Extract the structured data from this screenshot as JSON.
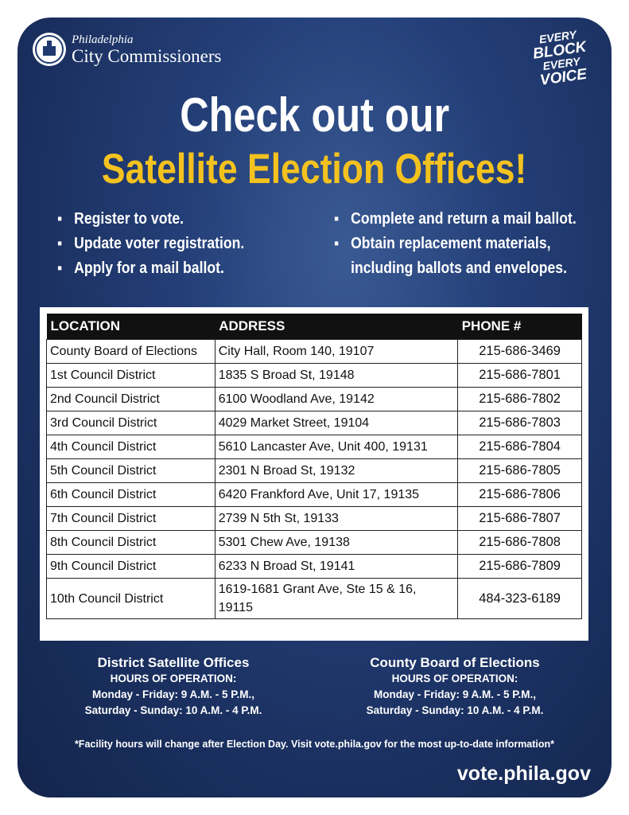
{
  "header": {
    "org_top": "Philadelphia",
    "org_name": "City Commissioners",
    "badge": [
      "EVERY",
      "BLOCK",
      "EVERY",
      "VOICE"
    ]
  },
  "headline": {
    "line1": "Check out our",
    "line2": "Satellite Election Offices!"
  },
  "services": {
    "left": [
      "Register to vote.",
      "Update voter registration.",
      "Apply for a mail ballot."
    ],
    "right": [
      "Complete and return a mail ballot.",
      "Obtain replacement materials, including ballots and envelopes."
    ]
  },
  "table": {
    "columns": [
      "LOCATION",
      "ADDRESS",
      "PHONE #"
    ],
    "rows": [
      [
        "County Board of Elections",
        "City Hall, Room 140, 19107",
        "215-686-3469"
      ],
      [
        "1st Council District",
        "1835 S Broad St, 19148",
        "215-686-7801"
      ],
      [
        "2nd Council District",
        "6100 Woodland Ave, 19142",
        "215-686-7802"
      ],
      [
        "3rd Council District",
        "4029 Market Street, 19104",
        "215-686-7803"
      ],
      [
        "4th Council District",
        "5610 Lancaster Ave, Unit 400, 19131",
        "215-686-7804"
      ],
      [
        "5th Council District",
        "2301 N Broad St, 19132",
        "215-686-7805"
      ],
      [
        "6th Council District",
        "6420 Frankford Ave, Unit 17, 19135",
        "215-686-7806"
      ],
      [
        "7th Council District",
        "2739 N 5th St, 19133",
        "215-686-7807"
      ],
      [
        "8th Council District",
        "5301 Chew Ave, 19138",
        "215-686-7808"
      ],
      [
        "9th Council District",
        "6233 N Broad St, 19141",
        "215-686-7809"
      ],
      [
        "10th Council District",
        "1619-1681 Grant Ave, Ste 15 & 16, 19115",
        "484-323-6189"
      ]
    ]
  },
  "hours": [
    {
      "title": "District Satellite Offices",
      "subtitle": "HOURS OF OPERATION:",
      "lines": [
        "Monday - Friday: 9 A.M. - 5 P.M.,",
        "Saturday - Sunday: 10 A.M. - 4 P.M."
      ]
    },
    {
      "title": "County Board of Elections",
      "subtitle": "HOURS OF OPERATION:",
      "lines": [
        "Monday - Friday: 9 A.M. - 5 P.M.,",
        "Saturday - Sunday: 10 A.M. - 4 P.M."
      ]
    }
  ],
  "footnote": "*Facility hours will change after Election Day. Visit vote.phila.gov for the most up-to-date information*",
  "url": "vote.phila.gov"
}
